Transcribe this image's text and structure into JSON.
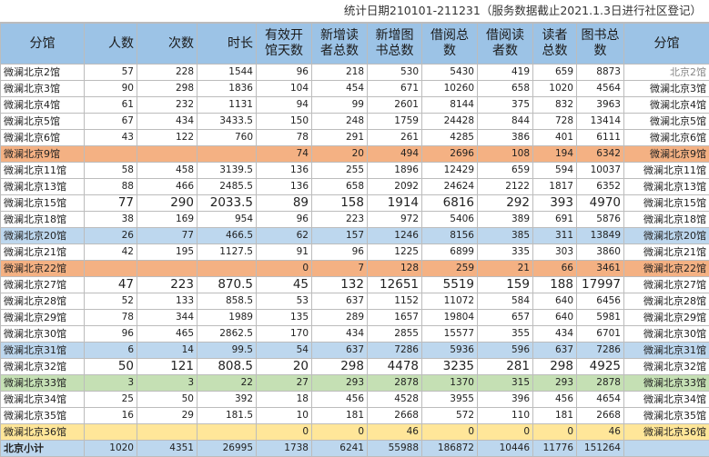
{
  "title": "统计日期210101-211231（服务数据截止2021.1.3日进行社区登记）",
  "headers": [
    "分馆",
    "人数",
    "次数",
    "时长",
    "有效开馆天数",
    "新增读者总数",
    "新增图书总数",
    "借阅总数",
    "借阅读者数",
    "读者总数",
    "图书总数",
    "分馆"
  ],
  "rows": [
    {
      "style": "plain",
      "name": "微澜北京2馆",
      "cells": [
        "57",
        "228",
        "1544",
        "96",
        "218",
        "530",
        "5430",
        "419",
        "659",
        "8873"
      ],
      "name2": "北京2馆",
      "name2_gray": true
    },
    {
      "style": "plain",
      "name": "微澜北京3馆",
      "cells": [
        "90",
        "298",
        "1836",
        "104",
        "454",
        "671",
        "10260",
        "658",
        "1020",
        "4564"
      ],
      "name2": "微澜北京3馆"
    },
    {
      "style": "plain",
      "name": "微澜北京4馆",
      "cells": [
        "61",
        "232",
        "1131",
        "94",
        "99",
        "2601",
        "8144",
        "375",
        "832",
        "3963"
      ],
      "name2": "微澜北京4馆"
    },
    {
      "style": "plain",
      "name": "微澜北京5馆",
      "cells": [
        "67",
        "434",
        "3433.5",
        "150",
        "248",
        "1759",
        "24428",
        "844",
        "728",
        "13414"
      ],
      "name2": "微澜北京5馆"
    },
    {
      "style": "plain",
      "name": "微澜北京6馆",
      "cells": [
        "43",
        "122",
        "760",
        "78",
        "291",
        "261",
        "4285",
        "386",
        "401",
        "6111"
      ],
      "name2": "微澜北京6馆"
    },
    {
      "style": "orange",
      "name": "微澜北京9馆",
      "cells": [
        "",
        "",
        "",
        "74",
        "20",
        "494",
        "2696",
        "108",
        "194",
        "6342"
      ],
      "name2": "微澜北京9馆"
    },
    {
      "style": "plain",
      "name": "微澜北京11馆",
      "cells": [
        "58",
        "458",
        "3139.5",
        "136",
        "255",
        "1896",
        "12429",
        "659",
        "594",
        "10037"
      ],
      "name2": "微澜北京11馆"
    },
    {
      "style": "plain",
      "name": "微澜北京13馆",
      "cells": [
        "88",
        "466",
        "2485.5",
        "136",
        "658",
        "2092",
        "24624",
        "2122",
        "1817",
        "6352"
      ],
      "name2": "微澜北京13馆"
    },
    {
      "style": "big",
      "name": "微澜北京15馆",
      "cells": [
        "77",
        "290",
        "2033.5",
        "89",
        "158",
        "1914",
        "6816",
        "292",
        "393",
        "4970"
      ],
      "name2": "微澜北京15馆"
    },
    {
      "style": "plain",
      "name": "微澜北京18馆",
      "cells": [
        "38",
        "169",
        "954",
        "96",
        "223",
        "972",
        "5406",
        "389",
        "691",
        "5876"
      ],
      "name2": "微澜北京18馆"
    },
    {
      "style": "blue",
      "name": "微澜北京20馆",
      "cells": [
        "26",
        "77",
        "466.5",
        "62",
        "157",
        "1246",
        "8156",
        "385",
        "311",
        "13849"
      ],
      "name2": "微澜北京20馆"
    },
    {
      "style": "plain",
      "name": "微澜北京21馆",
      "cells": [
        "42",
        "195",
        "1127.5",
        "91",
        "96",
        "1225",
        "6899",
        "335",
        "303",
        "3860"
      ],
      "name2": "微澜北京21馆"
    },
    {
      "style": "orange",
      "name": "微澜北京22馆",
      "cells": [
        "",
        "",
        "",
        "0",
        "7",
        "128",
        "259",
        "21",
        "66",
        "3461"
      ],
      "name2": "微澜北京22馆"
    },
    {
      "style": "big",
      "name": "微澜北京27馆",
      "cells": [
        "47",
        "223",
        "870.5",
        "45",
        "132",
        "12651",
        "5519",
        "159",
        "188",
        "17997"
      ],
      "name2": "微澜北京27馆"
    },
    {
      "style": "plain",
      "name": "微澜北京28馆",
      "cells": [
        "52",
        "133",
        "858.5",
        "53",
        "637",
        "1152",
        "11072",
        "584",
        "640",
        "6456"
      ],
      "name2": "微澜北京28馆"
    },
    {
      "style": "plain",
      "name": "微澜北京29馆",
      "cells": [
        "78",
        "344",
        "1989",
        "135",
        "289",
        "1657",
        "19804",
        "657",
        "640",
        "5981"
      ],
      "name2": "微澜北京29馆"
    },
    {
      "style": "plain",
      "name": "微澜北京30馆",
      "cells": [
        "96",
        "465",
        "2862.5",
        "170",
        "434",
        "2855",
        "15577",
        "355",
        "434",
        "6701"
      ],
      "name2": "微澜北京30馆"
    },
    {
      "style": "blue",
      "name": "微澜北京31馆",
      "cells": [
        "6",
        "14",
        "99.5",
        "54",
        "637",
        "7286",
        "5936",
        "596",
        "637",
        "7286"
      ],
      "name2": "微澜北京31馆"
    },
    {
      "style": "big",
      "name": "微澜北京32馆",
      "cells": [
        "50",
        "121",
        "808.5",
        "20",
        "298",
        "4478",
        "3235",
        "281",
        "298",
        "4925"
      ],
      "name2": "微澜北京32馆"
    },
    {
      "style": "green",
      "name": "微澜北京33馆",
      "cells": [
        "3",
        "3",
        "22",
        "27",
        "293",
        "2878",
        "1370",
        "315",
        "293",
        "2878"
      ],
      "name2": "微澜北京33馆"
    },
    {
      "style": "plain",
      "name": "微澜北京34馆",
      "cells": [
        "25",
        "50",
        "392",
        "18",
        "456",
        "4528",
        "3955",
        "396",
        "456",
        "4654"
      ],
      "name2": "微澜北京34馆"
    },
    {
      "style": "plain",
      "name": "微澜北京35馆",
      "cells": [
        "16",
        "29",
        "181.5",
        "10",
        "181",
        "2668",
        "572",
        "110",
        "181",
        "2668"
      ],
      "name2": "微澜北京35馆"
    },
    {
      "style": "yellow",
      "name": "微澜北京36馆",
      "cells": [
        "",
        "",
        "",
        "0",
        "0",
        "46",
        "0",
        "0",
        "0",
        "46"
      ],
      "name2": "微澜北京36馆"
    }
  ],
  "total": {
    "name": "北京小计",
    "cells": [
      "1020",
      "4351",
      "26995",
      "1738",
      "6241",
      "55988",
      "186872",
      "10446",
      "11776",
      "151264"
    ],
    "name2": ""
  }
}
